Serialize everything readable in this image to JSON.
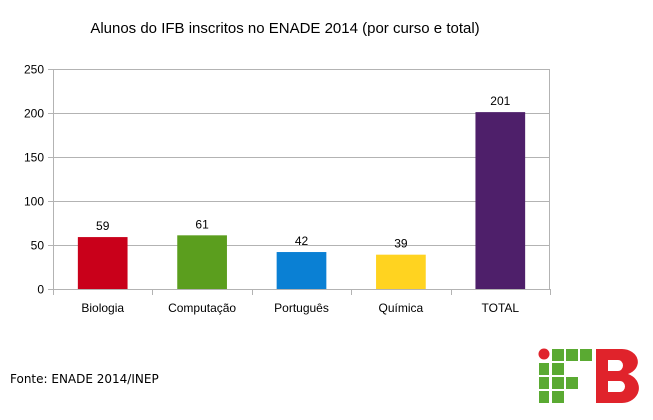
{
  "chart_data": {
    "type": "bar",
    "title": "Alunos do IFB inscritos no ENADE 2014 (por curso e total)",
    "categories": [
      "Biologia",
      "Computação",
      "Português",
      "Química",
      "TOTAL"
    ],
    "values": [
      59,
      61,
      42,
      39,
      201
    ],
    "data_labels": [
      "59",
      "61",
      "42",
      "39",
      "201"
    ],
    "bar_colors": [
      "#c9001a",
      "#5b9e1e",
      "#0a80d4",
      "#ffd320",
      "#4e1f6a"
    ],
    "xlabel": "",
    "ylabel": "",
    "ylim": [
      0,
      250
    ],
    "yticks": [
      0,
      50,
      100,
      150,
      200,
      250
    ],
    "ytick_labels": [
      "0",
      "50",
      "100",
      "150",
      "200",
      "250"
    ],
    "grid": true,
    "legend": false
  },
  "source": "Fonte: ENADE 2014/INEP",
  "logo": {
    "text": "IFB",
    "colors": {
      "green": "#5aaa32",
      "red": "#e0232b"
    }
  }
}
